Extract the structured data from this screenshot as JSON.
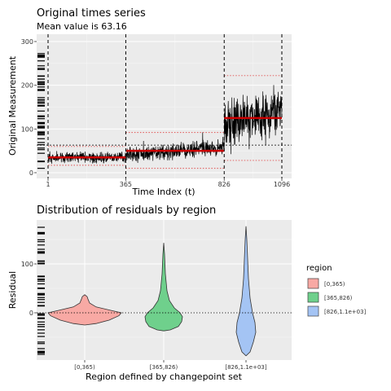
{
  "chart_data": [
    {
      "type": "line",
      "title": "Original times series",
      "subtitle": "Mean value is 63.16",
      "xlabel": "Time Index (t)",
      "ylabel": "Original Measurement",
      "xlim": [
        1,
        1096
      ],
      "ylim": [
        0,
        300
      ],
      "x_ticks": [
        1,
        365,
        826,
        1096
      ],
      "x_tick_labels": [
        "1",
        "365",
        "826",
        "1096"
      ],
      "y_ticks": [
        0,
        100,
        200,
        300
      ],
      "y_tick_labels": [
        "0",
        "100",
        "200",
        "300"
      ],
      "overall_mean": 63.16,
      "changepoints": [
        1,
        365,
        826,
        1096
      ],
      "segments": [
        {
          "start": 1,
          "end": 365,
          "mean": 35,
          "lower": 17,
          "upper": 60
        },
        {
          "start": 365,
          "end": 826,
          "mean": 50,
          "lower": 10,
          "upper": 92
        },
        {
          "start": 826,
          "end": 1096,
          "mean": 125,
          "lower": 28,
          "upper": 222
        }
      ],
      "grid": true
    },
    {
      "type": "violin",
      "title": "Distribution of residuals by region",
      "xlabel": "Region defined by changepoint set",
      "ylabel": "Residual",
      "categories": [
        "[0,365)",
        "[365,826)",
        "[826,1.1e+03]"
      ],
      "y_ticks": [
        0,
        100
      ],
      "y_tick_labels": [
        "0",
        "100"
      ],
      "ylim": [
        -90,
        180
      ],
      "series": [
        {
          "name": "[0,365)",
          "color": "#F8A9A4",
          "min": -25,
          "max": 37,
          "mode": 0
        },
        {
          "name": "[365,826)",
          "color": "#6FD08C",
          "min": -37,
          "max": 143,
          "mode": 5
        },
        {
          "name": "[826,1.1e+03]",
          "color": "#A4C4F4",
          "min": -88,
          "max": 177,
          "mode": -10
        }
      ],
      "legend": {
        "title": "region",
        "position": "right"
      },
      "grid": true
    }
  ]
}
